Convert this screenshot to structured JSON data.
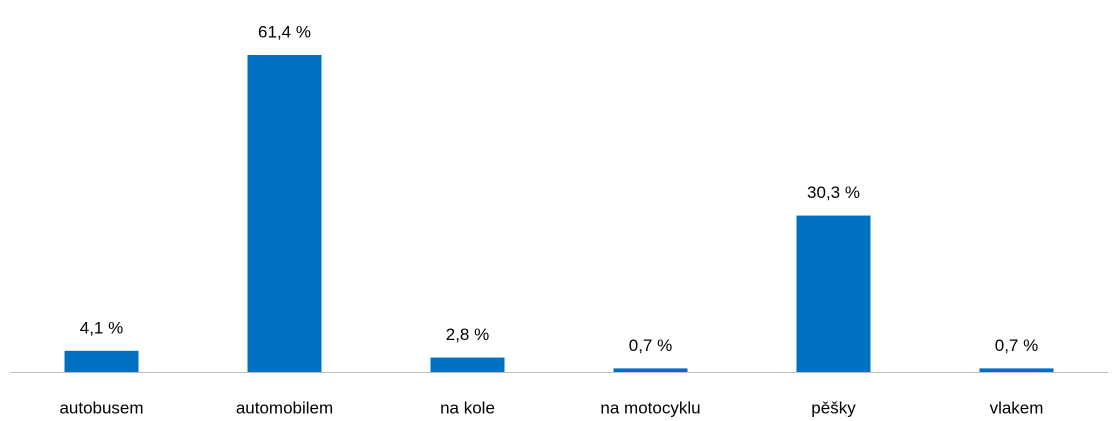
{
  "chart_data": {
    "type": "bar",
    "categories": [
      "autobusem",
      "automobilem",
      "na kole",
      "na motocyklu",
      "pěšky",
      "vlakem"
    ],
    "values": [
      4.1,
      61.4,
      2.8,
      0.7,
      30.3,
      0.7
    ],
    "value_labels": [
      "4,1 %",
      "61,4 %",
      "2,8 %",
      "0,7 %",
      "30,3 %",
      "0,7 %"
    ],
    "color": "#0070c0"
  }
}
